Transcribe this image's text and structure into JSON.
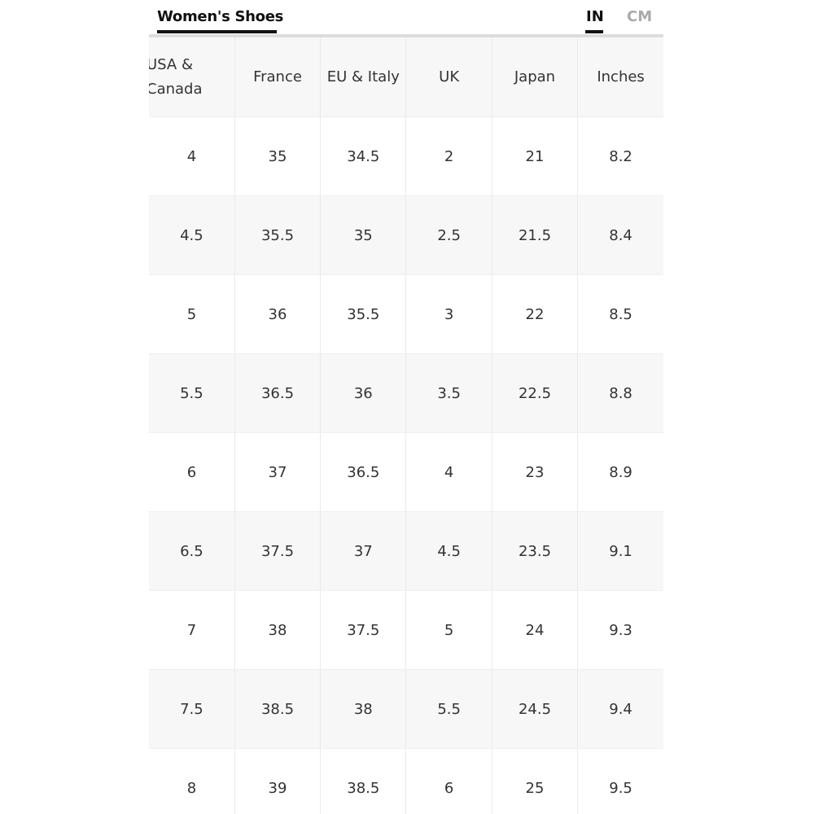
{
  "tabs": {
    "title": "Women's Shoes",
    "unit_in": "IN",
    "unit_cm": "CM",
    "selected_unit": "IN"
  },
  "table": {
    "headers": [
      "USA & Canada",
      "France",
      "EU & Italy",
      "UK",
      "Japan",
      "Inches"
    ],
    "rows": [
      [
        "4",
        "35",
        "34.5",
        "2",
        "21",
        "8.2"
      ],
      [
        "4.5",
        "35.5",
        "35",
        "2.5",
        "21.5",
        "8.4"
      ],
      [
        "5",
        "36",
        "35.5",
        "3",
        "22",
        "8.5"
      ],
      [
        "5.5",
        "36.5",
        "36",
        "3.5",
        "22.5",
        "8.8"
      ],
      [
        "6",
        "37",
        "36.5",
        "4",
        "23",
        "8.9"
      ],
      [
        "6.5",
        "37.5",
        "37",
        "4.5",
        "23.5",
        "9.1"
      ],
      [
        "7",
        "38",
        "37.5",
        "5",
        "24",
        "9.3"
      ],
      [
        "7.5",
        "38.5",
        "38",
        "5.5",
        "24.5",
        "9.4"
      ],
      [
        "8",
        "39",
        "38.5",
        "6",
        "25",
        "9.5"
      ]
    ]
  }
}
